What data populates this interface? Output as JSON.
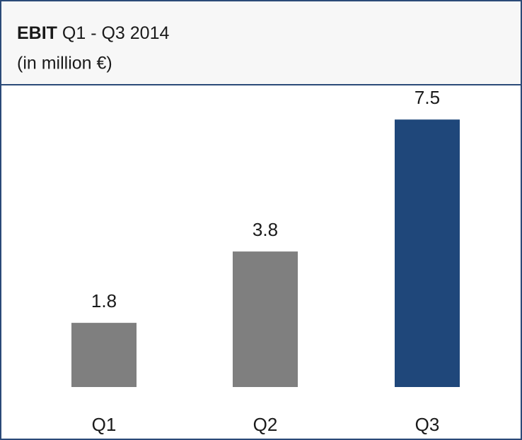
{
  "chart_data": {
    "type": "bar",
    "title_bold": "EBIT",
    "title": "Q1 - Q3 2014",
    "subtitle": "(in million €)",
    "categories": [
      "Q1",
      "Q2",
      "Q3"
    ],
    "values": [
      1.8,
      3.8,
      7.5
    ],
    "colors": [
      "#7f7f7f",
      "#7f7f7f",
      "#1f477a"
    ]
  }
}
